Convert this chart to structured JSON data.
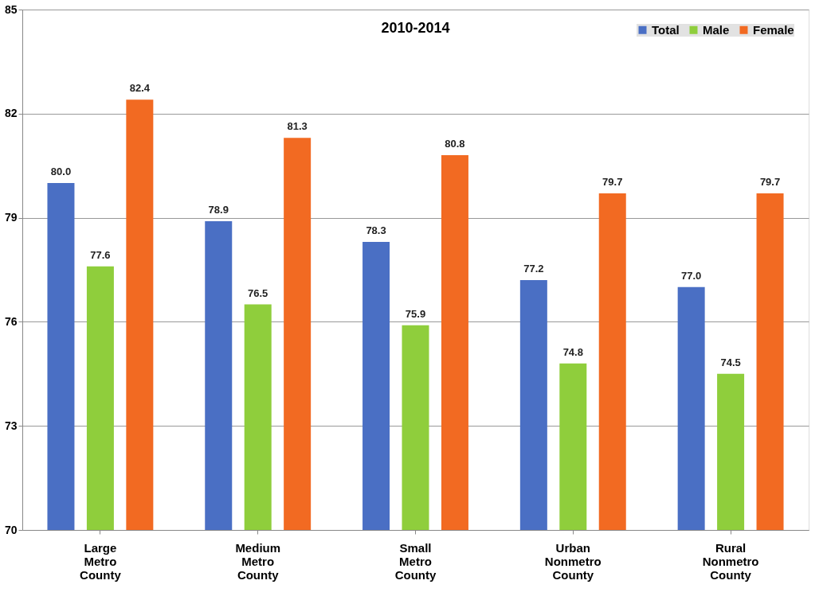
{
  "chart_data": {
    "type": "bar",
    "title": "2010-2014",
    "categories": [
      "Large Metro County",
      "Medium Metro County",
      "Small Metro County",
      "Urban Nonmetro County",
      "Rural Nonmetro County"
    ],
    "series": [
      {
        "name": "Total",
        "color": "#4a6fc4",
        "values": [
          80.0,
          78.9,
          78.3,
          77.2,
          77.0
        ],
        "value_labels": [
          "80.0",
          "78.9",
          "78.3",
          "77.2",
          "77.0"
        ]
      },
      {
        "name": "Male",
        "color": "#8fce3c",
        "values": [
          77.6,
          76.5,
          75.9,
          74.8,
          74.5
        ],
        "value_labels": [
          "77.6",
          "76.5",
          "75.9",
          "74.8",
          "74.5"
        ]
      },
      {
        "name": "Female",
        "color": "#f26a22",
        "values": [
          82.4,
          81.3,
          80.8,
          79.7,
          79.7
        ],
        "value_labels": [
          "82.4",
          "81.3",
          "80.8",
          "79.7",
          "79.7"
        ]
      }
    ],
    "ylim": [
      70,
      85
    ],
    "yticks": [
      70,
      73,
      76,
      79,
      82,
      85
    ],
    "grid": "y",
    "legend": "top right"
  }
}
